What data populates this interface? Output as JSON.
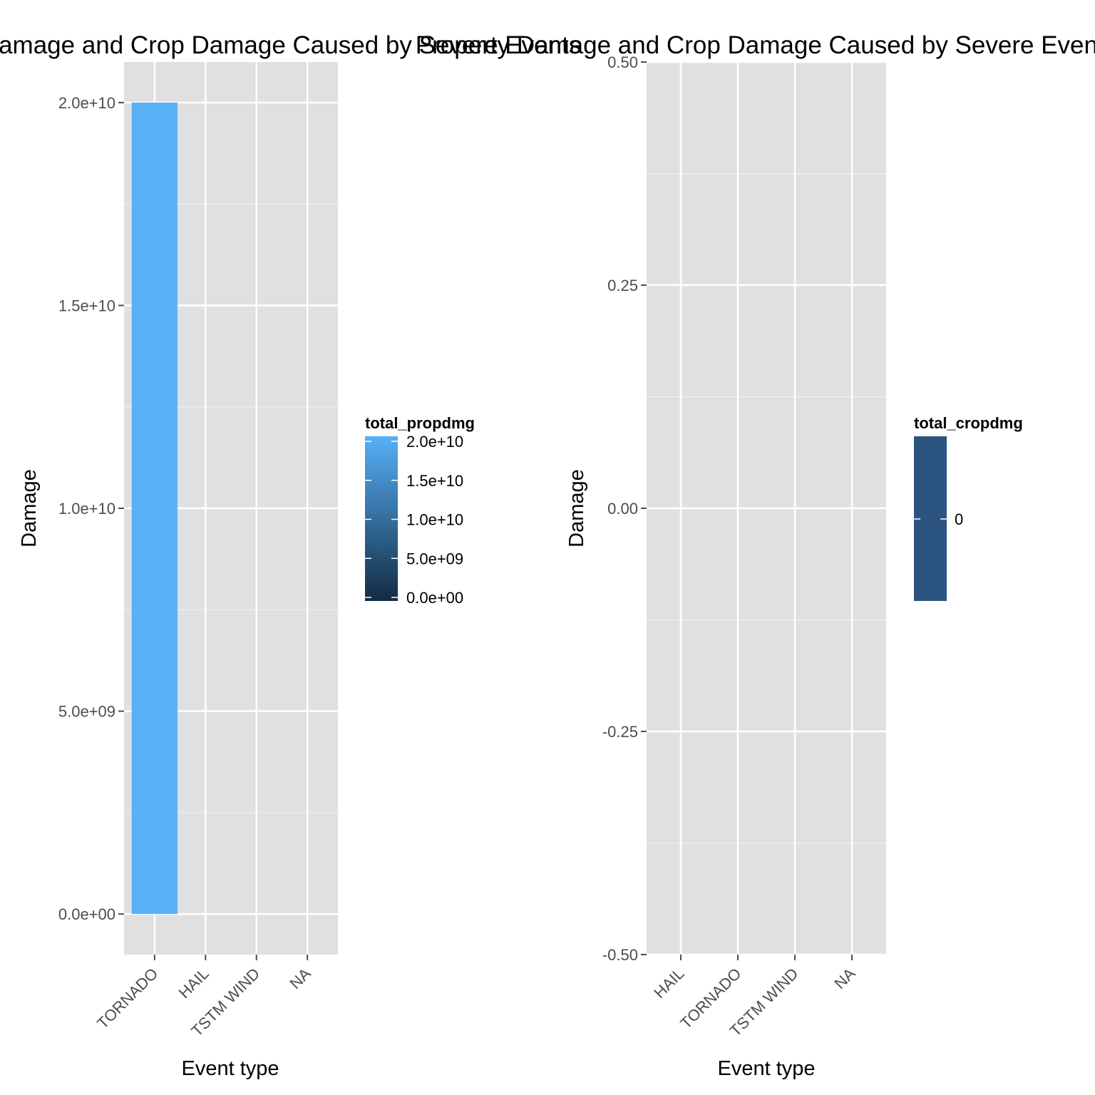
{
  "chart_data": [
    {
      "type": "bar",
      "title": "Property Damage and Crop Damage Caused by Severe Events",
      "xlabel": "Event type",
      "ylabel": "Damage",
      "categories": [
        "TORNADO",
        "HAIL",
        "TSTM WIND",
        "NA"
      ],
      "values": [
        20000000000,
        0,
        0,
        0
      ],
      "ylim": [
        -1000000000,
        21000000000
      ],
      "y_ticks": [
        0,
        5000000000,
        10000000000,
        15000000000,
        20000000000
      ],
      "y_tick_labels": [
        "0.0e+00",
        "5.0e+09",
        "1.0e+10",
        "1.5e+10",
        "2.0e+10"
      ],
      "grid": true,
      "background": "#e0e0e0",
      "fill_scale": {
        "title": "total_propdmg",
        "low_color": "#132b43",
        "high_color": "#56b1f7",
        "domain": [
          0,
          20000000000
        ],
        "breaks": [
          0,
          5000000000,
          10000000000,
          15000000000,
          20000000000
        ],
        "labels": [
          "0.0e+00",
          "5.0e+09",
          "1.0e+10",
          "1.5e+10",
          "2.0e+10"
        ]
      },
      "legend_position": "right"
    },
    {
      "type": "bar",
      "title": "Property Damage and Crop Damage Caused by Severe Events",
      "xlabel": "Event type",
      "ylabel": "Damage",
      "categories": [
        "HAIL",
        "TORNADO",
        "TSTM WIND",
        "NA"
      ],
      "values": [
        0,
        0,
        0,
        0
      ],
      "ylim": [
        -0.5,
        0.5
      ],
      "y_ticks": [
        -0.5,
        -0.25,
        0,
        0.25,
        0.5
      ],
      "y_tick_labels": [
        "-0.50",
        "-0.25",
        "0.00",
        "0.25",
        "0.50"
      ],
      "grid": true,
      "background": "#e0e0e0",
      "fill_scale": {
        "title": "total_cropdmg",
        "color": "#2b5580",
        "breaks": [
          0
        ],
        "labels": [
          "0"
        ]
      },
      "legend_position": "right"
    }
  ]
}
